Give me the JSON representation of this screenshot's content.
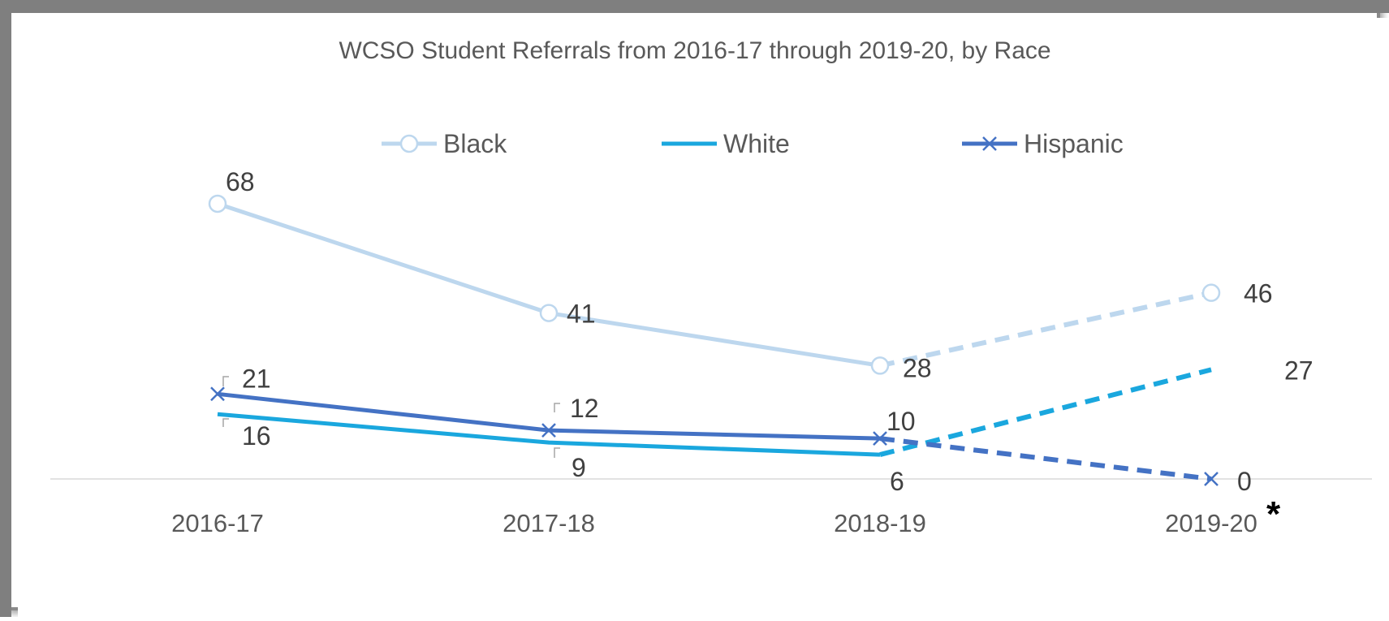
{
  "chart_data": {
    "type": "line",
    "title": "WCSO Student Referrals from 2016-17 through 2019-20, by Race",
    "xlabel": "",
    "ylabel": "",
    "categories": [
      "2016-17",
      "2017-18",
      "2018-19",
      "2019-20"
    ],
    "ylim": [
      0,
      70
    ],
    "grid": false,
    "legend": "top",
    "footnote_marker": "*",
    "series": [
      {
        "name": "Black",
        "values": [
          68,
          41,
          28,
          46
        ],
        "color": "#bdd7ee",
        "marker": "circle",
        "dashed_last_segment": true
      },
      {
        "name": "White",
        "values": [
          16,
          9,
          6,
          27
        ],
        "color": "#1aa7de",
        "marker": "none",
        "dashed_last_segment": true
      },
      {
        "name": "Hispanic",
        "values": [
          21,
          12,
          10,
          0
        ],
        "color": "#4472c4",
        "marker": "x",
        "dashed_last_segment": true
      }
    ]
  }
}
